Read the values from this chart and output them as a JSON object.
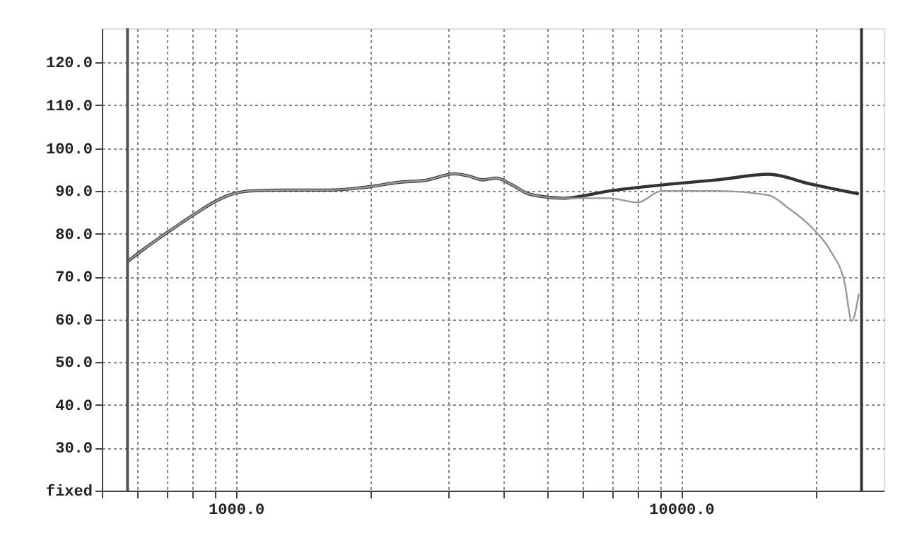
{
  "chart_data": {
    "type": "line",
    "series": [
      {
        "color": "#333333",
        "x": [
          571,
          623,
          695,
          758,
          834,
          897,
          964,
          1076,
          1290,
          1607,
          2000,
          2313,
          2674,
          3095,
          3327,
          3580,
          3850,
          4140,
          4550,
          5420,
          6900,
          9440,
          12070,
          15700,
          19540,
          25050
        ],
        "values": [
          73.5,
          76.5,
          80,
          82.7,
          85.5,
          87.5,
          89,
          90,
          90.2,
          90.2,
          91,
          92,
          92.5,
          94,
          93.5,
          92.6,
          93,
          91.6,
          89.3,
          88.3,
          90,
          91.6,
          92.6,
          93.9,
          91.6,
          89.3
        ]
      },
      {
        "color": "#999999",
        "x": [
          571,
          623,
          695,
          758,
          834,
          897,
          964,
          1076,
          1290,
          1607,
          2000,
          2313,
          2674,
          3095,
          3327,
          3580,
          3850,
          4140,
          4550,
          5420,
          6900,
          7980,
          9030,
          12070,
          15700,
          17400,
          19540,
          21640,
          23280,
          24150,
          25050
        ],
        "values": [
          73.5,
          76.5,
          80,
          82.7,
          85.5,
          87.5,
          89,
          90,
          90.2,
          90.2,
          91,
          92,
          92.5,
          94,
          93.5,
          92.6,
          93,
          91.6,
          89.3,
          88.3,
          88.3,
          87.3,
          90,
          90,
          89,
          86,
          81.7,
          76,
          68.5,
          59.6,
          66
        ]
      }
    ],
    "log": "x",
    "xlim": [
      500,
      28500
    ],
    "xticks": [
      {
        "value": 500,
        "label": null
      },
      {
        "value": 600,
        "label": null
      },
      {
        "value": 700,
        "label": null
      },
      {
        "value": 800,
        "label": null
      },
      {
        "value": 900,
        "label": null
      },
      {
        "value": 1000,
        "label": "1000.0"
      },
      {
        "value": 2000,
        "label": null
      },
      {
        "value": 3000,
        "label": null
      },
      {
        "value": 4000,
        "label": null
      },
      {
        "value": 5000,
        "label": null
      },
      {
        "value": 6000,
        "label": null
      },
      {
        "value": 7000,
        "label": null
      },
      {
        "value": 8000,
        "label": null
      },
      {
        "value": 9000,
        "label": null
      },
      {
        "value": 10000,
        "label": "10000.0"
      },
      {
        "value": 20000,
        "label": null
      }
    ],
    "ylim": [
      20,
      128
    ],
    "yticks": [
      {
        "value": 20,
        "label": "fixed"
      },
      {
        "value": 30,
        "label": "30.0"
      },
      {
        "value": 40,
        "label": "40.0"
      },
      {
        "value": 50,
        "label": "50.0"
      },
      {
        "value": 60,
        "label": "60.0"
      },
      {
        "value": 70,
        "label": "70.0"
      },
      {
        "value": 80,
        "label": "80.0"
      },
      {
        "value": 90,
        "label": "90.0"
      },
      {
        "value": 100,
        "label": "100.0"
      },
      {
        "value": 110,
        "label": "110.0"
      },
      {
        "value": 120,
        "label": "120.0"
      }
    ],
    "ref_lines": [
      {
        "axis": "x",
        "value": 571,
        "color": "#555555"
      },
      {
        "axis": "x",
        "value": 25400,
        "color": "#333333"
      }
    ],
    "grid": true,
    "line_style": "solid",
    "marker": "none"
  }
}
